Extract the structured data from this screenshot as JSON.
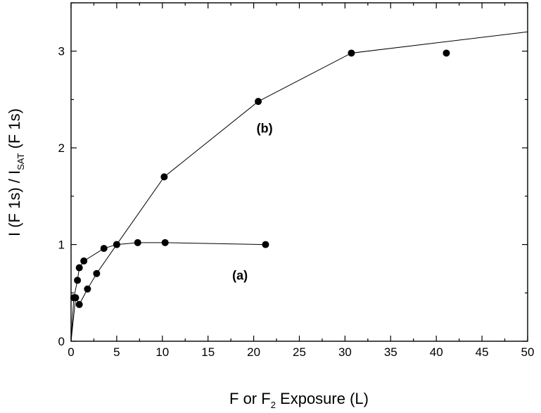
{
  "chart_data": {
    "type": "line",
    "title": "",
    "xlabel": {
      "main": "F or F",
      "sub": "2",
      "tail": " Exposure (L)"
    },
    "ylabel": {
      "part1": "I (F 1s) / I",
      "sub": "SAT",
      "part2": " (F 1s)"
    },
    "xlim": [
      0,
      50
    ],
    "ylim": [
      0,
      3.5
    ],
    "xticks": [
      0,
      5,
      10,
      15,
      20,
      25,
      30,
      35,
      40,
      45,
      50
    ],
    "yticks": [
      0,
      1,
      2,
      3
    ],
    "xtick_labels": [
      "0",
      "5",
      "10",
      "15",
      "20",
      "25",
      "30",
      "35",
      "40",
      "45",
      "50"
    ],
    "ytick_labels": [
      "0",
      "1",
      "2",
      "3"
    ],
    "grid": false,
    "series": [
      {
        "name": "(a)",
        "line": true,
        "x": [
          0,
          0.3,
          0.7,
          0.9,
          1.4,
          3.6,
          5.0,
          7.3,
          10.3,
          21.3
        ],
        "y": [
          0,
          0.45,
          0.63,
          0.76,
          0.83,
          0.96,
          1.0,
          1.02,
          1.02,
          1.0
        ],
        "markers": [
          false,
          true,
          true,
          true,
          true,
          true,
          true,
          true,
          true,
          true
        ]
      },
      {
        "name": "(b)",
        "line": true,
        "x": [
          0,
          0.5,
          0.9,
          1.8,
          2.8,
          5.0,
          10.2,
          20.5,
          30.7,
          50.0
        ],
        "y": [
          0,
          0.45,
          0.38,
          0.54,
          0.7,
          1.0,
          1.7,
          2.48,
          2.98,
          3.2
        ],
        "markers": [
          false,
          true,
          true,
          true,
          true,
          true,
          true,
          true,
          true,
          false
        ]
      },
      {
        "name": "",
        "line": false,
        "x": [
          41.1
        ],
        "y": [
          2.98
        ],
        "markers": [
          true
        ]
      }
    ],
    "annotations": [
      {
        "text": "(a)",
        "x": 18.5,
        "y": 0.68
      },
      {
        "text": "(b)",
        "x": 21.2,
        "y": 2.2
      }
    ],
    "colors": {
      "line": "#000000",
      "marker": "#000000"
    }
  }
}
